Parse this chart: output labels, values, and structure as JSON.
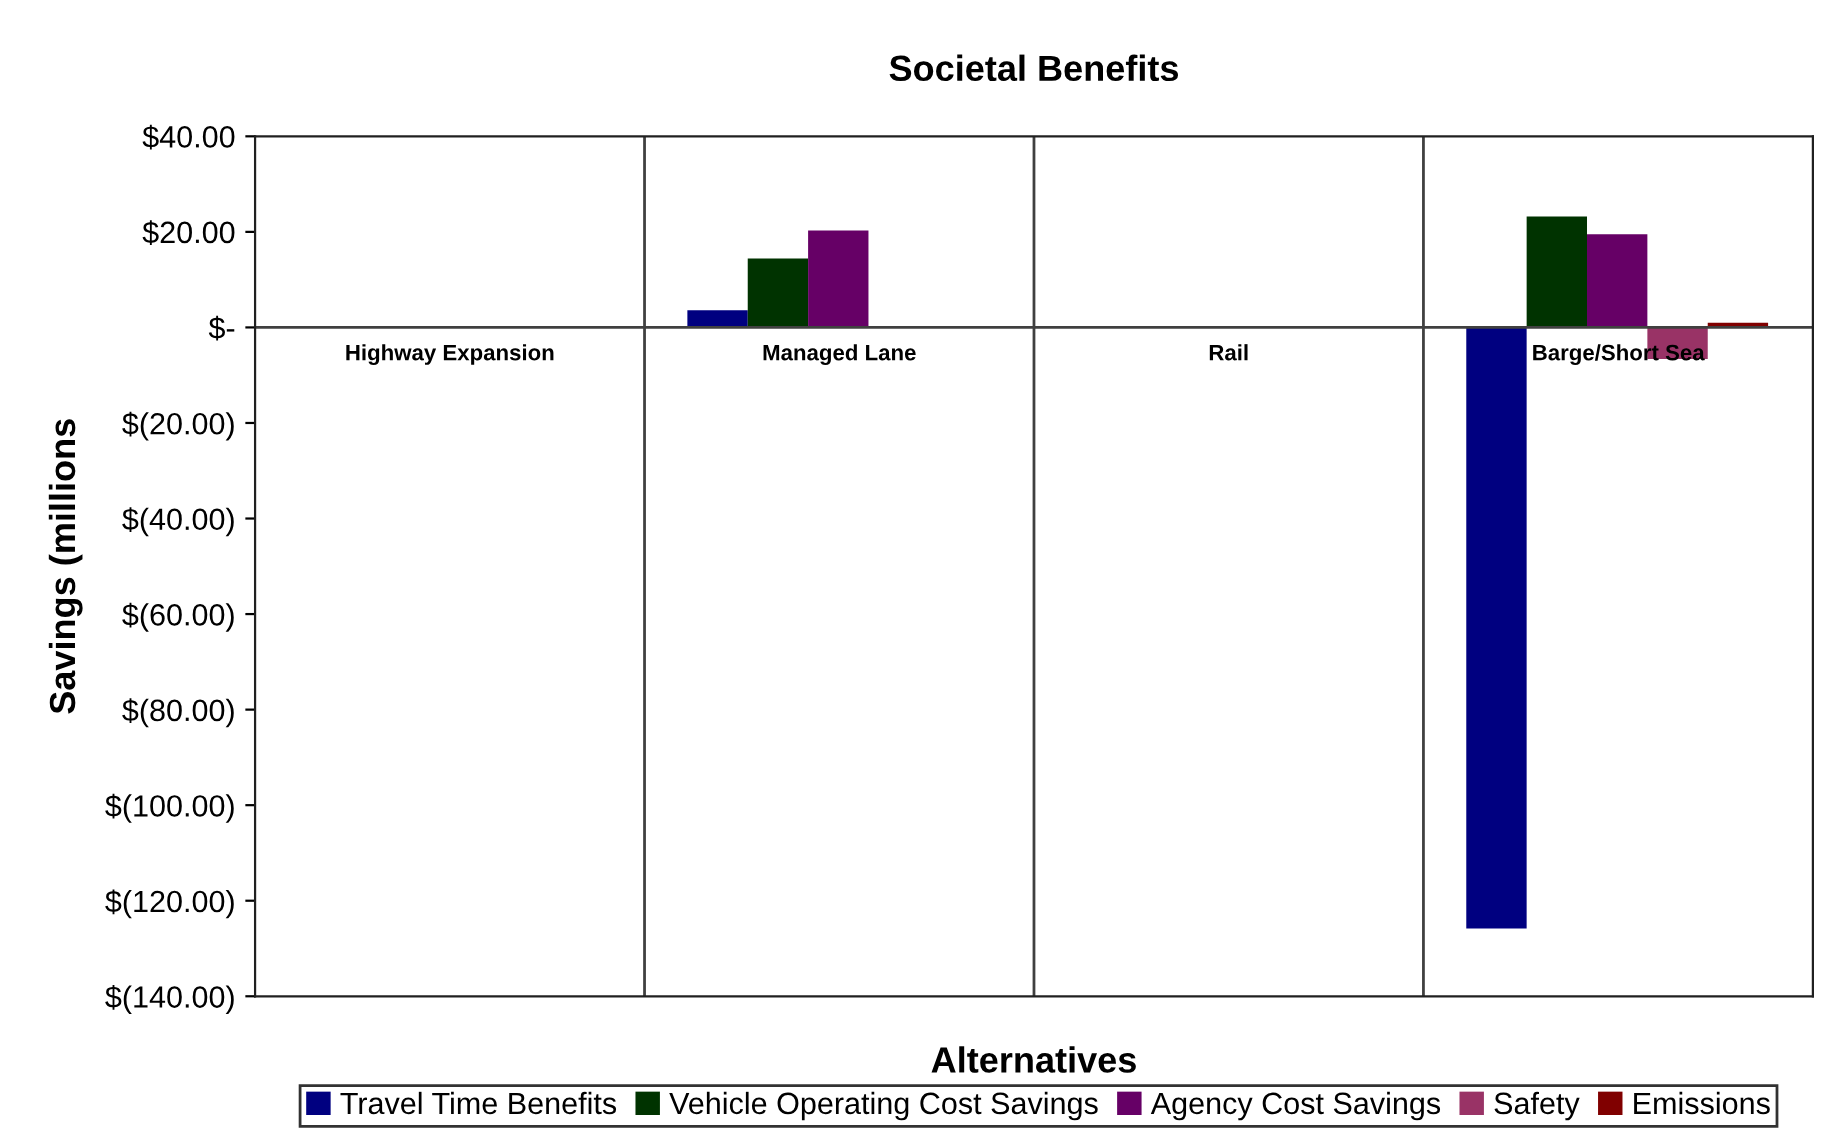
{
  "chart_data": {
    "type": "bar",
    "title": "Societal Benefits",
    "xlabel": "Alternatives",
    "ylabel": "Savings (millions",
    "categories": [
      "Highway Expansion",
      "Managed Lane",
      "Rail",
      "Barge/Short Sea"
    ],
    "series": [
      {
        "name": "Travel Time Benefits",
        "color": "#000080",
        "values": [
          null,
          3.6,
          null,
          -125.8
        ]
      },
      {
        "name": "Vehicle Operating Cost Savings",
        "color": "#003300",
        "values": [
          null,
          14.4,
          null,
          23.2
        ]
      },
      {
        "name": "Agency Cost Savings",
        "color": "#660066",
        "values": [
          null,
          20.3,
          null,
          19.5
        ]
      },
      {
        "name": "Safety",
        "color": "#993366",
        "values": [
          null,
          null,
          null,
          -6.6
        ]
      },
      {
        "name": "Emissions",
        "color": "#800000",
        "values": [
          null,
          null,
          null,
          1.0
        ]
      }
    ],
    "ylim": [
      -140,
      40
    ],
    "yticks": [
      {
        "value": -140,
        "label": "$(140.00)"
      },
      {
        "value": -120,
        "label": "$(120.00)"
      },
      {
        "value": -100,
        "label": "$(100.00)"
      },
      {
        "value": -80,
        "label": "$(80.00)"
      },
      {
        "value": -60,
        "label": "$(60.00)"
      },
      {
        "value": -40,
        "label": "$(40.00)"
      },
      {
        "value": -20,
        "label": "$(20.00)"
      },
      {
        "value": 0,
        "label": "$-"
      },
      {
        "value": 20,
        "label": "$20.00"
      },
      {
        "value": 40,
        "label": "$40.00"
      }
    ],
    "grid": "x",
    "legend": "bottom"
  }
}
